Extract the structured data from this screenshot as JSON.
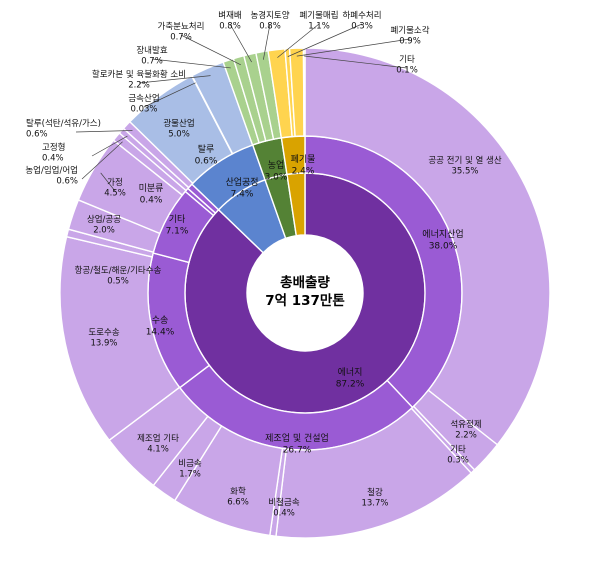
{
  "chart_data": {
    "type": "sunburst",
    "center_label": [
      "총배출량",
      "7억 137만톤"
    ],
    "rings": {
      "inner": [
        {
          "id": "energy",
          "label": "에너지",
          "pct": "87.2%",
          "value": 87.2,
          "color": "#7030A0"
        },
        {
          "id": "process",
          "label": "산업공정",
          "pct": "7.4%",
          "value": 7.4,
          "color": "#5B84CF"
        },
        {
          "id": "agri",
          "label": "농업",
          "pct": "3.0%",
          "value": 3.0,
          "color": "#548235"
        },
        {
          "id": "waste",
          "label": "폐기물",
          "pct": "2.4%",
          "value": 2.4,
          "color": "#D9A300"
        }
      ],
      "middle": [
        {
          "label": "에너지산업",
          "pct": "38.0%",
          "value": 38.0,
          "parent": "energy",
          "color": "#9A5BD4"
        },
        {
          "label": "제조업 및 건설업",
          "pct": "26.7%",
          "value": 26.7,
          "parent": "energy",
          "color": "#9A5BD4"
        },
        {
          "label": "수송",
          "pct": "14.4%",
          "value": 14.4,
          "parent": "energy",
          "color": "#9A5BD4"
        },
        {
          "label": "기타",
          "pct": "7.1%",
          "value": 7.1,
          "parent": "energy",
          "color": "#9A5BD4"
        },
        {
          "label": "미분류",
          "pct": "0.4%",
          "value": 0.4,
          "parent": "energy",
          "color": "#9A5BD4"
        },
        {
          "label": "탈루",
          "pct": "0.6%",
          "value": 0.6,
          "parent": "energy",
          "color": "#9A5BD4"
        },
        {
          "label": "산업공정",
          "pct": "7.4%",
          "value": 7.4,
          "parent": "process",
          "color": "#5B84CF"
        },
        {
          "label": "농업",
          "pct": "3.0%",
          "value": 3.0,
          "parent": "agri",
          "color": "#548235"
        },
        {
          "label": "폐기물",
          "pct": "2.4%",
          "value": 2.4,
          "parent": "waste",
          "color": "#D9A300"
        }
      ],
      "outer": [
        {
          "label": "공공 전기 및 열 생산",
          "pct": "35.5%",
          "value": 35.5,
          "color": "#C9A6E8"
        },
        {
          "label": "석유정제",
          "pct": "2.2%",
          "value": 2.2,
          "color": "#C9A6E8"
        },
        {
          "label": "기타",
          "pct": "0.3%",
          "value": 0.3,
          "color": "#C9A6E8"
        },
        {
          "label": "철강",
          "pct": "13.7%",
          "value": 13.7,
          "color": "#C9A6E8"
        },
        {
          "label": "비철금속",
          "pct": "0.4%",
          "value": 0.4,
          "color": "#C9A6E8"
        },
        {
          "label": "화학",
          "pct": "6.6%",
          "value": 6.6,
          "color": "#C9A6E8"
        },
        {
          "label": "비금속",
          "pct": "1.7%",
          "value": 1.7,
          "color": "#C9A6E8"
        },
        {
          "label": "제조업 기타",
          "pct": "4.1%",
          "value": 4.1,
          "color": "#C9A6E8"
        },
        {
          "label": "도로수송",
          "pct": "13.9%",
          "value": 13.9,
          "color": "#C9A6E8"
        },
        {
          "label": "항공/철도/해운/기타수송",
          "pct": "0.5%",
          "value": 0.5,
          "color": "#C9A6E8"
        },
        {
          "label": "상업/공공",
          "pct": "2.0%",
          "value": 2.0,
          "color": "#C9A6E8"
        },
        {
          "label": "가정",
          "pct": "4.5%",
          "value": 4.5,
          "color": "#C9A6E8"
        },
        {
          "label": "농업/임업/어업",
          "pct": "0.6%",
          "value": 0.6,
          "color": "#C9A6E8"
        },
        {
          "label": "고정형",
          "pct": "0.4%",
          "value": 0.4,
          "color": "#C9A6E8"
        },
        {
          "label": "탈루(석탄/석유/가스)",
          "pct": "0.6%",
          "value": 0.6,
          "color": "#C9A6E8"
        },
        {
          "label": "광물산업",
          "pct": "5.0%",
          "value": 5.0,
          "color": "#A9BEE6"
        },
        {
          "label": "금속산업",
          "pct": "0.03%",
          "value": 0.03,
          "color": "#A9BEE6"
        },
        {
          "label": "할로카본 및 육불화황 소비",
          "pct": "2.2%",
          "value": 2.2,
          "color": "#A9BEE6"
        },
        {
          "label": "장내발효",
          "pct": "0.7%",
          "value": 0.7,
          "color": "#A9D18E"
        },
        {
          "label": "가축분뇨처리",
          "pct": "0.7%",
          "value": 0.7,
          "color": "#A9D18E"
        },
        {
          "label": "벼재배",
          "pct": "0.8%",
          "value": 0.8,
          "color": "#A9D18E"
        },
        {
          "label": "농경지토양",
          "pct": "0.8%",
          "value": 0.8,
          "color": "#A9D18E"
        },
        {
          "label": "폐기물매립",
          "pct": "1.1%",
          "value": 1.1,
          "color": "#FFD44F"
        },
        {
          "label": "하폐수처리",
          "pct": "0.3%",
          "value": 0.3,
          "color": "#FFD44F"
        },
        {
          "label": "폐기물소각",
          "pct": "0.9%",
          "value": 0.9,
          "color": "#FFD44F"
        },
        {
          "label": "기타",
          "pct": "0.1%",
          "value": 0.1,
          "color": "#FFD44F"
        }
      ]
    }
  }
}
